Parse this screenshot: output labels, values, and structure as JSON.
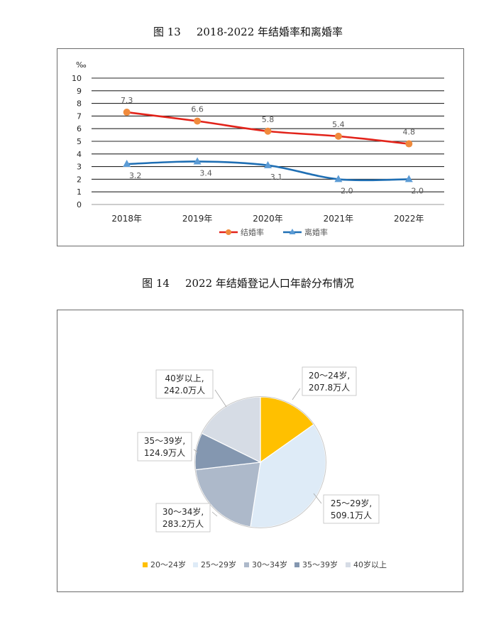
{
  "figures": [
    {
      "number": "图 13",
      "caption": "2018-2022 年结婚率和离婚率"
    },
    {
      "number": "图 14",
      "caption": "2022 年结婚登记人口年龄分布情况"
    }
  ],
  "chart_data": [
    {
      "type": "line",
      "title": "2018-2022 年结婚率和离婚率",
      "ylabel": "‰",
      "ylim": [
        0,
        10
      ],
      "yticks": [
        "0",
        "1",
        "2",
        "3",
        "4",
        "5",
        "6",
        "7",
        "8",
        "9",
        "10"
      ],
      "categories": [
        "2018年",
        "2019年",
        "2020年",
        "2021年",
        "2022年"
      ],
      "grid": true,
      "legend_position": "bottom",
      "series": [
        {
          "name": "结婚率",
          "values": [
            7.3,
            6.6,
            5.8,
            5.4,
            4.8
          ],
          "labels": [
            "7.3",
            "6.6",
            "5.8",
            "5.4",
            "4.8"
          ],
          "color": "#e2231a",
          "marker": "circle",
          "marker_color": "#f08a3c"
        },
        {
          "name": "离婚率",
          "values": [
            3.2,
            3.4,
            3.1,
            2.0,
            2.0
          ],
          "labels": [
            "3.2",
            "3.4",
            "3.1",
            "2.0",
            "2.0"
          ],
          "color": "#1f6fb4",
          "marker": "triangle",
          "marker_color": "#5b9bd5"
        }
      ]
    },
    {
      "type": "pie",
      "title": "2022 年结婚登记人口年龄分布情况",
      "legend_position": "bottom",
      "slices": [
        {
          "name": "20～24岁",
          "value": 207.8,
          "label_line1": "20～24岁,",
          "label_line2": "207.8万人",
          "color": "#ffc000"
        },
        {
          "name": "25～29岁",
          "value": 509.1,
          "label_line1": "25～29岁,",
          "label_line2": "509.1万人",
          "color": "#deebf7"
        },
        {
          "name": "30～34岁",
          "value": 283.2,
          "label_line1": "30～34岁,",
          "label_line2": "283.2万人",
          "color": "#adb9ca"
        },
        {
          "name": "35～39岁",
          "value": 124.9,
          "label_line1": "35～39岁,",
          "label_line2": "124.9万人",
          "color": "#8497b0"
        },
        {
          "name": "40岁以上",
          "value": 242.0,
          "label_line1": "40岁以上,",
          "label_line2": "242.0万人",
          "color": "#d6dce5"
        }
      ]
    }
  ]
}
